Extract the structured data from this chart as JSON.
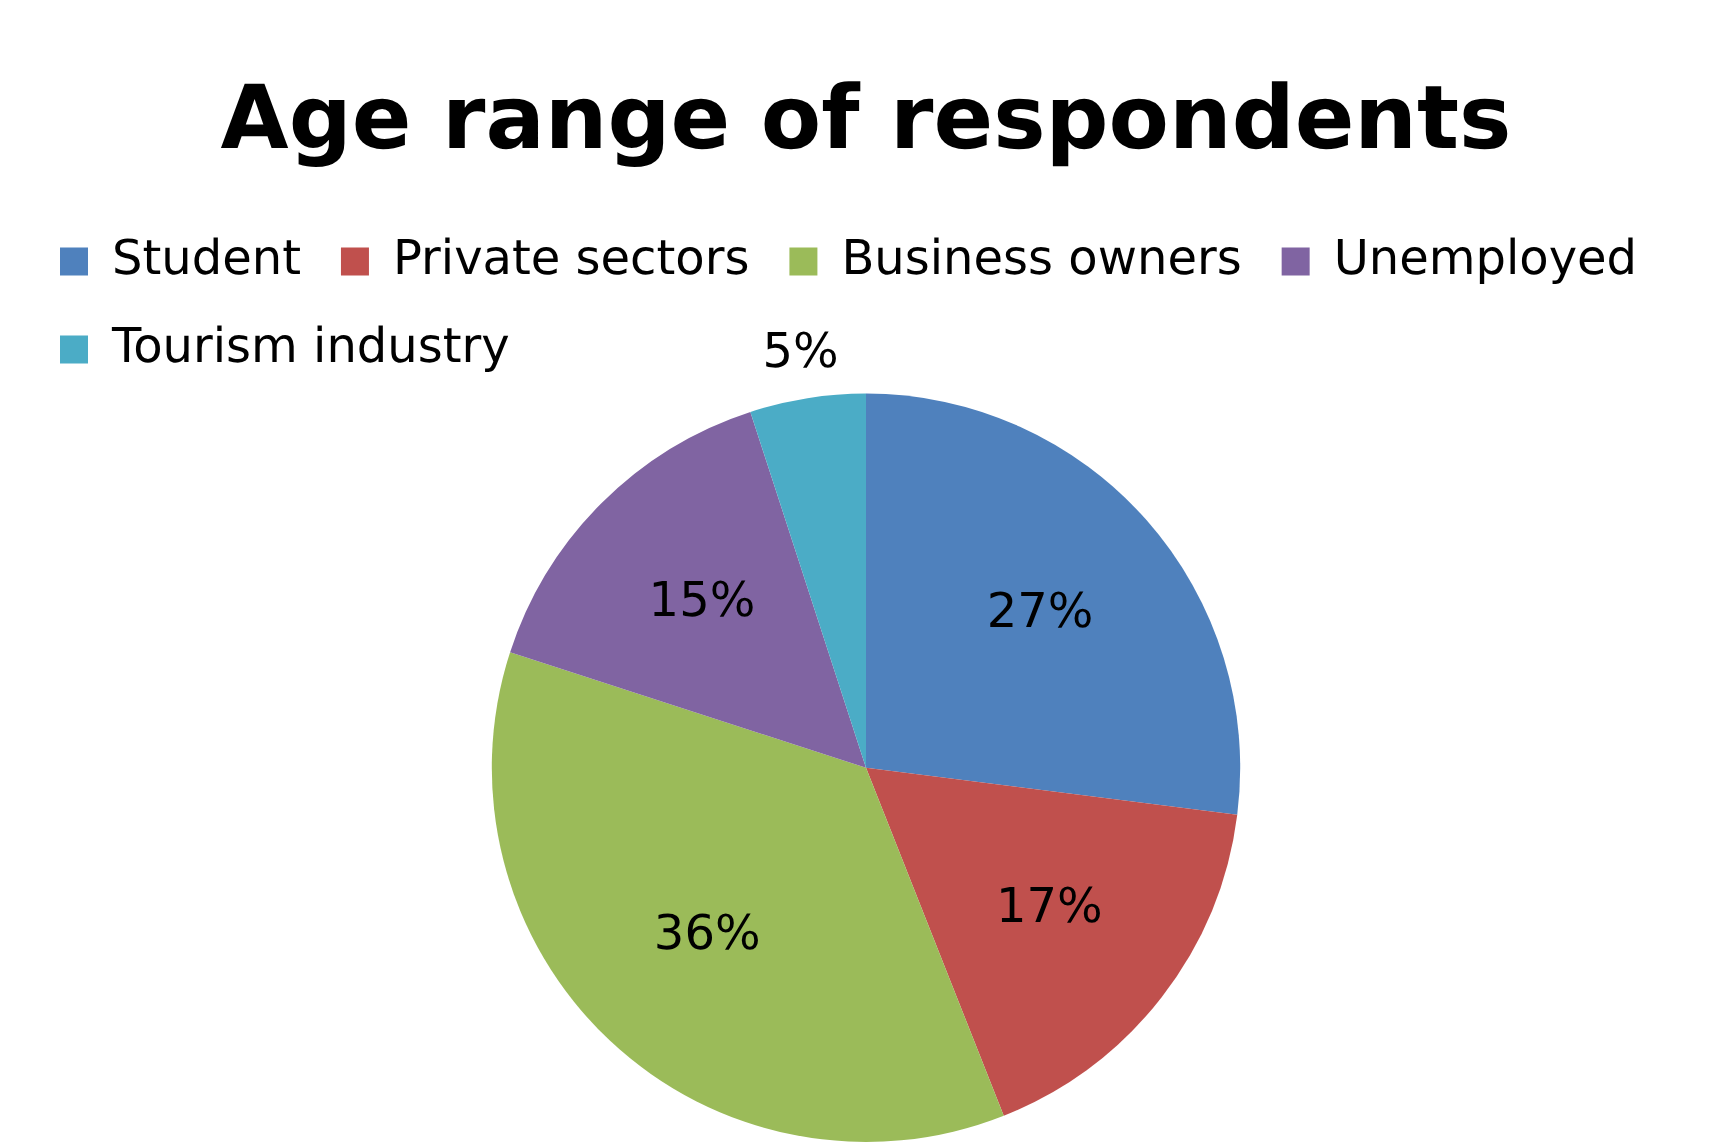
{
  "chart_data": {
    "type": "pie",
    "title": "Age range of respondents",
    "categories": [
      "Student",
      "Private sectors",
      "Business owners",
      "Unemployed",
      "Tourism industry"
    ],
    "values": [
      27,
      17,
      36,
      15,
      5
    ],
    "colors": [
      "#4f81bd",
      "#c0504d",
      "#9bbb59",
      "#8064a2",
      "#4bacc6"
    ],
    "value_labels": [
      "27%",
      "17%",
      "36%",
      "15%",
      "5%"
    ],
    "legend": "top"
  }
}
